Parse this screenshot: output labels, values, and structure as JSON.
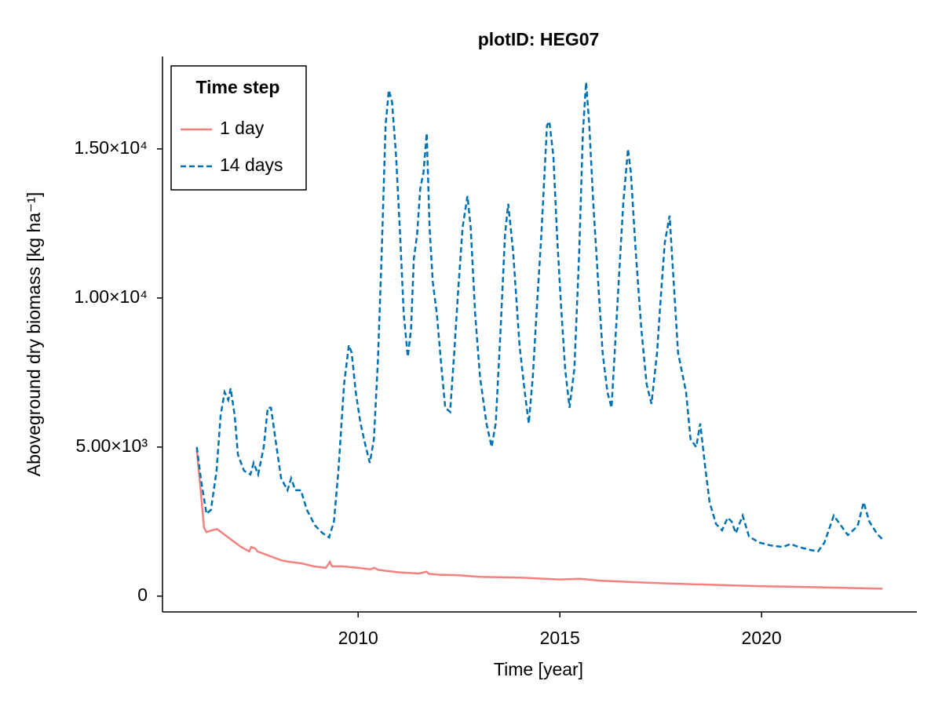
{
  "chart_data": {
    "type": "line",
    "title": "plotID: HEG07",
    "xlabel": "Time [year]",
    "ylabel": "Aboveground dry biomass [kg ha⁻¹]",
    "legend_title": "Time step",
    "legend": "top left",
    "xlim": [
      2005.15,
      2023.85
    ],
    "xticks": [
      2010,
      2015,
      2020
    ],
    "ylim": [
      -530,
      18100
    ],
    "yticks": [
      0,
      {
        "value": 5000,
        "label": "5.00×10³"
      },
      {
        "value": 10000,
        "label": "1.00×10⁴"
      },
      {
        "value": 15000,
        "label": "1.50×10⁴"
      }
    ],
    "grid": false,
    "series": [
      {
        "name": "1 day",
        "color": "#f4817f",
        "linestyle": "solid",
        "x": [
          2006.0,
          2006.1,
          2006.18,
          2006.24,
          2006.35,
          2006.5,
          2006.7,
          2006.9,
          2007.1,
          2007.3,
          2007.35,
          2007.45,
          2007.5,
          2007.8,
          2008.1,
          2008.3,
          2008.6,
          2008.9,
          2009.2,
          2009.3,
          2009.35,
          2009.6,
          2010.0,
          2010.3,
          2010.4,
          2010.5,
          2011.0,
          2011.5,
          2011.7,
          2011.75,
          2012.0,
          2012.5,
          2013.0,
          2014.0,
          2015.0,
          2015.5,
          2016.0,
          2017.0,
          2018.0,
          2019.0,
          2020.0,
          2021.0,
          2022.0,
          2023.0
        ],
        "values": [
          4900,
          3500,
          2300,
          2150,
          2200,
          2250,
          2050,
          1850,
          1650,
          1500,
          1650,
          1600,
          1500,
          1350,
          1200,
          1150,
          1100,
          1000,
          950,
          1150,
          1000,
          1000,
          950,
          900,
          950,
          880,
          800,
          760,
          820,
          750,
          720,
          700,
          650,
          620,
          560,
          580,
          520,
          460,
          410,
          370,
          330,
          310,
          280,
          250
        ]
      },
      {
        "name": "14 days",
        "color": "#0072b2",
        "linestyle": "dashed",
        "x": [
          2006.0,
          2006.1,
          2006.24,
          2006.35,
          2006.49,
          2006.59,
          2006.69,
          2006.78,
          2006.84,
          2006.94,
          2007.02,
          2007.17,
          2007.33,
          2007.41,
          2007.52,
          2007.66,
          2007.76,
          2007.84,
          2007.95,
          2008.09,
          2008.25,
          2008.34,
          2008.44,
          2008.58,
          2008.73,
          2008.93,
          2009.12,
          2009.28,
          2009.4,
          2009.51,
          2009.65,
          2009.77,
          2009.84,
          2009.94,
          2010.06,
          2010.19,
          2010.29,
          2010.39,
          2010.49,
          2010.58,
          2010.68,
          2010.76,
          2010.84,
          2010.94,
          2011.04,
          2011.13,
          2011.23,
          2011.31,
          2011.38,
          2011.46,
          2011.54,
          2011.62,
          2011.7,
          2011.77,
          2011.85,
          2011.95,
          2012.05,
          2012.16,
          2012.28,
          2012.38,
          2012.48,
          2012.59,
          2012.71,
          2012.79,
          2012.9,
          2013.02,
          2013.18,
          2013.31,
          2013.41,
          2013.53,
          2013.64,
          2013.72,
          2013.84,
          2014.0,
          2014.13,
          2014.23,
          2014.33,
          2014.42,
          2014.54,
          2014.68,
          2014.74,
          2014.84,
          2014.93,
          2015.03,
          2015.13,
          2015.24,
          2015.36,
          2015.48,
          2015.57,
          2015.65,
          2015.73,
          2015.83,
          2015.95,
          2016.06,
          2016.18,
          2016.28,
          2016.37,
          2016.47,
          2016.57,
          2016.69,
          2016.76,
          2016.88,
          2017.02,
          2017.15,
          2017.27,
          2017.41,
          2017.5,
          2017.6,
          2017.72,
          2017.81,
          2017.93,
          2018.05,
          2018.13,
          2018.24,
          2018.38,
          2018.48,
          2018.59,
          2018.71,
          2018.87,
          2019.02,
          2019.16,
          2019.26,
          2019.36,
          2019.53,
          2019.69,
          2019.94,
          2020.23,
          2020.53,
          2020.72,
          2020.92,
          2021.21,
          2021.4,
          2021.56,
          2021.79,
          2021.95,
          2022.14,
          2022.38,
          2022.53,
          2022.67,
          2022.86,
          2023.0
        ],
        "values": [
          5000,
          3950,
          2760,
          2890,
          4210,
          6050,
          6840,
          6580,
          6970,
          6050,
          4740,
          4210,
          4080,
          4470,
          4080,
          5000,
          6320,
          6320,
          5260,
          3950,
          3550,
          3950,
          3550,
          3550,
          2890,
          2370,
          2110,
          1970,
          2500,
          4210,
          7110,
          8420,
          8160,
          6840,
          5790,
          5000,
          4470,
          5260,
          7890,
          11320,
          15790,
          16970,
          16580,
          14740,
          12110,
          9470,
          8030,
          8950,
          11320,
          12110,
          13680,
          14210,
          15530,
          12370,
          10530,
          9470,
          7890,
          6320,
          6180,
          8160,
          10260,
          12370,
          13420,
          12370,
          9470,
          7370,
          5790,
          5000,
          5790,
          8950,
          12110,
          13160,
          11580,
          8420,
          6840,
          5790,
          7370,
          9470,
          12110,
          15790,
          15920,
          14740,
          12110,
          9740,
          7630,
          6320,
          7630,
          11580,
          15530,
          17240,
          15790,
          13160,
          10530,
          8160,
          6840,
          6320,
          8420,
          10790,
          13160,
          15000,
          14210,
          11580,
          8950,
          7110,
          6450,
          8160,
          10000,
          11840,
          12760,
          10790,
          8160,
          7370,
          6840,
          5260,
          5000,
          5790,
          4470,
          3160,
          2420,
          2210,
          2630,
          2500,
          2110,
          2700,
          2000,
          1800,
          1700,
          1650,
          1750,
          1650,
          1550,
          1500,
          1800,
          2700,
          2400,
          2050,
          2350,
          3150,
          2500,
          2100,
          1900
        ]
      }
    ]
  }
}
